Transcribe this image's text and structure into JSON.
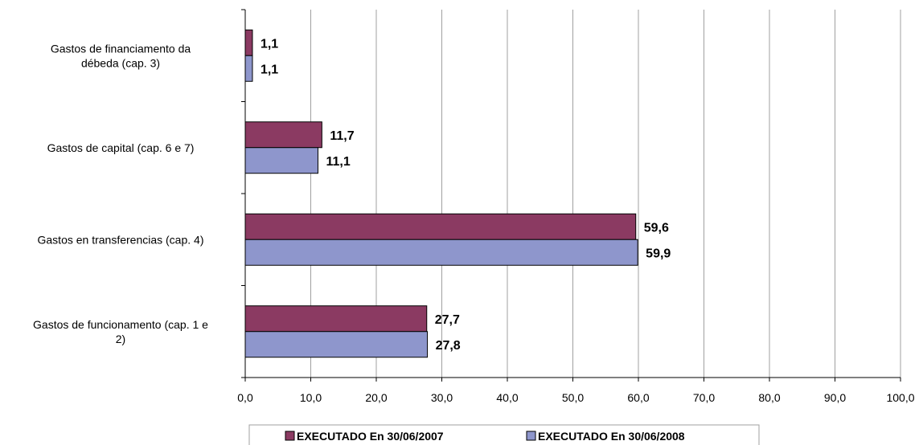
{
  "chart_data": {
    "type": "bar",
    "orientation": "horizontal",
    "categories": [
      [
        "Gastos de financiamento da",
        "débeda (cap. 3)"
      ],
      [
        "Gastos de capital (cap. 6 e 7)"
      ],
      [
        "Gastos en transferencias (cap. 4)"
      ],
      [
        "Gastos de funcionamento (cap. 1 e",
        "2)"
      ]
    ],
    "series": [
      {
        "name": "EXECUTADO En 30/06/2007",
        "color": "#8B3A62",
        "values": [
          1.1,
          11.7,
          59.6,
          27.7
        ],
        "labels": [
          "1,1",
          "11,7",
          "59,6",
          "27,7"
        ]
      },
      {
        "name": "EXECUTADO En 30/06/2008",
        "color": "#8E96CC",
        "values": [
          1.1,
          11.1,
          59.9,
          27.8
        ],
        "labels": [
          "1,1",
          "11,1",
          "59,9",
          "27,8"
        ]
      }
    ],
    "xlim": [
      0,
      100
    ],
    "xticks": [
      0,
      10,
      20,
      30,
      40,
      50,
      60,
      70,
      80,
      90,
      100
    ],
    "xtick_labels": [
      "0,0",
      "10,0",
      "20,0",
      "30,0",
      "40,0",
      "50,0",
      "60,0",
      "70,0",
      "80,0",
      "90,0",
      "100,0"
    ],
    "grid": "vertical",
    "legend_position": "bottom"
  }
}
